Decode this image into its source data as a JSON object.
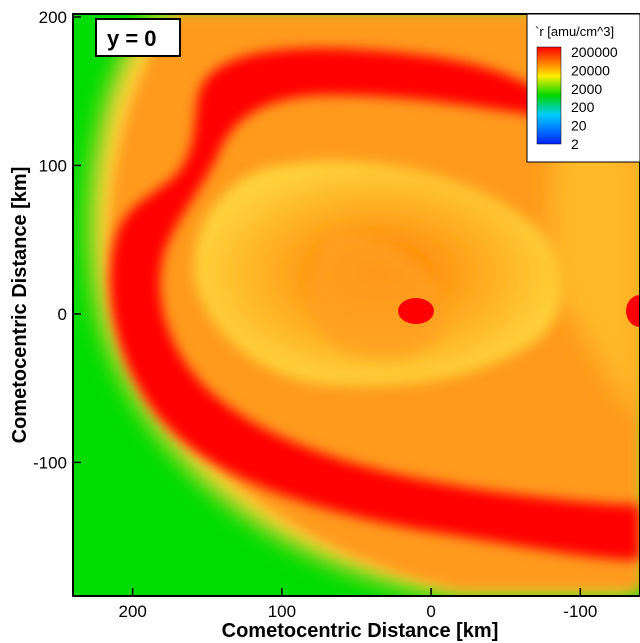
{
  "chart_data": {
    "type": "heatmap",
    "title": "",
    "slice_label": "y = 0",
    "xlabel": "Cometocentric Distance [km]",
    "ylabel": "Cometocentric Distance [km]",
    "x_range_km": [
      240,
      -140
    ],
    "y_range_km": [
      -190,
      202
    ],
    "x_axis_reversed": true,
    "x_ticks": [
      200,
      100,
      0,
      -100
    ],
    "y_ticks": [
      200,
      100,
      0,
      -100
    ],
    "colorbar": {
      "title": "`r [amu/cm^3]",
      "scale": "log",
      "levels": [
        200000,
        20000,
        2000,
        200,
        20,
        2
      ],
      "labels": [
        "200000",
        "20000",
        "2000",
        "200",
        "20",
        "2"
      ],
      "colors": [
        "#ff0000",
        "#ffee00",
        "#00d800",
        "#00ccff",
        "#0022ff"
      ]
    },
    "field_colors": {
      "red": "#ff0000",
      "orange": "#ff9a1a",
      "yellow": "#ffd23a",
      "green": "#00dc00"
    },
    "features": [
      {
        "name": "density peak",
        "x": 10,
        "y": 3,
        "value": 200000
      },
      {
        "name": "density peak",
        "x": -140,
        "y": 3,
        "value": 200000
      }
    ]
  }
}
